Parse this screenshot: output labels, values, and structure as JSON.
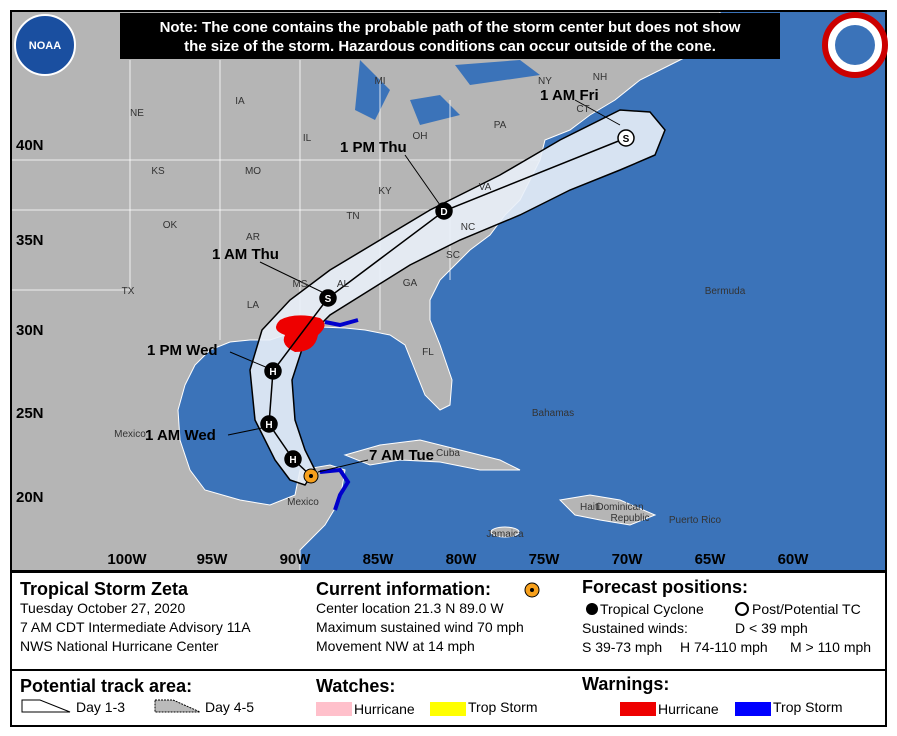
{
  "note": [
    "Note: The cone contains the probable path of the storm center but does not show",
    "the size of the storm. Hazardous conditions can occur outside of the cone."
  ],
  "logo": "NOAA",
  "map": {
    "lat_labels": [
      "40N",
      "35N",
      "30N",
      "25N",
      "20N"
    ],
    "lon_labels": [
      "100W",
      "95W",
      "90W",
      "85W",
      "80W",
      "75W",
      "70W",
      "65W",
      "60W"
    ],
    "places": [
      "NE",
      "IA",
      "MI",
      "NY",
      "NH",
      "CT",
      "IL",
      "OH",
      "PA",
      "KS",
      "MO",
      "KY",
      "VA",
      "OK",
      "AR",
      "TN",
      "NC",
      "SC",
      "TX",
      "LA",
      "MS",
      "AL",
      "GA",
      "FL",
      "Bermuda",
      "Bahamas",
      "Cuba",
      "Mexico",
      "Mexico",
      "Haiti",
      "Dominican",
      "Republic",
      "Jamaica",
      "Puerto Rico"
    ],
    "forecast_labels": [
      "1 AM Fri",
      "1 PM Thu",
      "1 AM Thu",
      "1 PM Wed",
      "1 AM Wed",
      "7 AM Tue"
    ],
    "point_symbols": [
      "S",
      "D",
      "S",
      "H",
      "H",
      "H"
    ]
  },
  "storm": {
    "name": "Tropical Storm Zeta",
    "date": "Tuesday October 27, 2020",
    "advisory": "7 AM CDT Intermediate Advisory 11A",
    "source": "NWS National Hurricane Center"
  },
  "current": {
    "title": "Current information:",
    "location": "Center location 21.3 N 89.0 W",
    "wind": "Maximum sustained wind 70 mph",
    "movement": "Movement NW at 14 mph"
  },
  "forecast_positions": {
    "title": "Forecast positions:",
    "tropical": "Tropical Cyclone",
    "post": "Post/Potential TC",
    "winds_label": "Sustained winds:",
    "d": "D < 39 mph",
    "s": "S 39-73 mph",
    "h": "H 74-110 mph",
    "m": "M > 110 mph"
  },
  "track_area": {
    "title": "Potential track area:",
    "day13": "Day 1-3",
    "day45": "Day 4-5"
  },
  "watches": {
    "title": "Watches:",
    "hurricane": "Hurricane",
    "trop_storm": "Trop Storm"
  },
  "warnings": {
    "title": "Warnings:",
    "hurricane": "Hurricane",
    "trop_storm": "Trop Storm"
  }
}
